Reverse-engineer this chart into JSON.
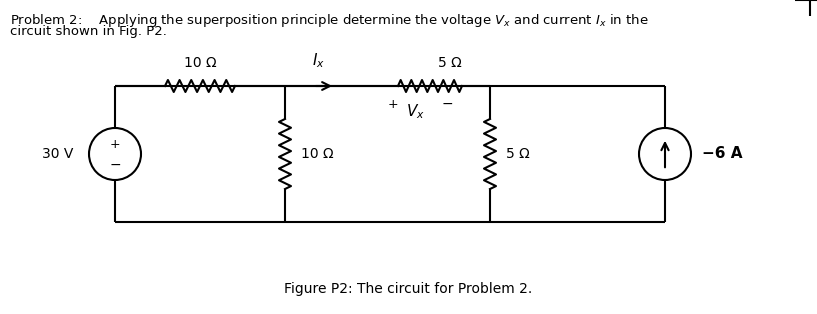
{
  "bg_color": "#ffffff",
  "line_color": "#000000",
  "fig_width": 8.17,
  "fig_height": 3.14,
  "dpi": 100,
  "caption": "Figure P2: The circuit for Problem 2.",
  "header_line1_parts": [
    "Problem 2:    Applying the superposition principle determine the voltage $V_x$ and current $I_x$ in the"
  ],
  "header_line2": "circuit shown in Fig. P2.",
  "label_10ohm_top": "10 Ω",
  "label_5ohm_top": "5 Ω",
  "label_10ohm_vert": "10 Ω",
  "label_5ohm_vert": "5 Ω",
  "label_30v": "30 V",
  "label_6a": "−6 A",
  "label_ix": "$I_x$",
  "label_vx": "$V_x$"
}
